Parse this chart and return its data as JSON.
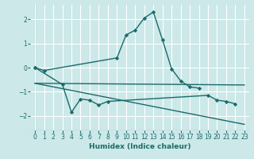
{
  "xlabel": "Humidex (Indice chaleur)",
  "ylabel": "",
  "xlim": [
    -0.5,
    23.5
  ],
  "ylim": [
    -2.6,
    2.6
  ],
  "yticks": [
    -2,
    -1,
    0,
    1,
    2
  ],
  "xticks": [
    0,
    1,
    2,
    3,
    4,
    5,
    6,
    7,
    8,
    9,
    10,
    11,
    12,
    13,
    14,
    15,
    16,
    17,
    18,
    19,
    20,
    21,
    22,
    23
  ],
  "bg_color": "#cce8e8",
  "grid_color": "#ffffff",
  "line_color": "#1a6b6b",
  "lines": [
    {
      "x": [
        0,
        1,
        9,
        10,
        11,
        12,
        13,
        14,
        15,
        16,
        17,
        18
      ],
      "y": [
        0.0,
        -0.12,
        0.4,
        1.35,
        1.55,
        2.05,
        2.3,
        1.15,
        -0.05,
        -0.55,
        -0.8,
        -0.85
      ],
      "marker": true
    },
    {
      "x": [
        0,
        3,
        4,
        5,
        6,
        7,
        8,
        19,
        20,
        21,
        22
      ],
      "y": [
        0.0,
        -0.7,
        -1.85,
        -1.3,
        -1.35,
        -1.55,
        -1.4,
        -1.15,
        -1.35,
        -1.4,
        -1.5
      ],
      "marker": true
    },
    {
      "x": [
        0,
        23
      ],
      "y": [
        -0.65,
        -0.72
      ],
      "marker": false
    },
    {
      "x": [
        0,
        23
      ],
      "y": [
        -0.65,
        -2.35
      ],
      "marker": false
    }
  ]
}
